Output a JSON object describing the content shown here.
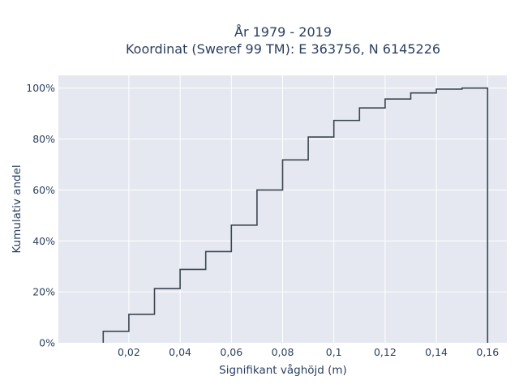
{
  "chart_data": {
    "type": "line",
    "subtype": "cumulative-step",
    "title_line1": "År 1979 - 2019",
    "title_line2": "Koordinat (Sweref 99 TM): E 363756, N 6145226",
    "xlabel": "Signifikant våghöjd (m)",
    "ylabel": "Kumulativ andel",
    "xlim": [
      -0.0075,
      0.1675
    ],
    "ylim": [
      0,
      1.05
    ],
    "x_ticks": [
      0.02,
      0.04,
      0.06,
      0.08,
      0.1,
      0.12,
      0.14,
      0.16
    ],
    "x_tick_labels": [
      "0,02",
      "0,04",
      "0,06",
      "0,08",
      "0,1",
      "0,12",
      "0,14",
      "0,16"
    ],
    "y_ticks": [
      0,
      0.2,
      0.4,
      0.6,
      0.8,
      1.0
    ],
    "y_tick_labels": [
      "0%",
      "20%",
      "40%",
      "60%",
      "80%",
      "100%"
    ],
    "bin_edges": [
      0.01,
      0.02,
      0.03,
      0.04,
      0.05,
      0.06,
      0.07,
      0.08,
      0.09,
      0.1,
      0.11,
      0.12,
      0.13,
      0.14,
      0.15,
      0.16
    ],
    "cumulative": [
      0.045,
      0.112,
      0.213,
      0.288,
      0.358,
      0.462,
      0.6,
      0.718,
      0.808,
      0.873,
      0.922,
      0.957,
      0.981,
      0.996,
      1.0
    ],
    "grid": true,
    "line_color": "#3d4650",
    "plot_bg": "#e5e8f0",
    "grid_color": "#ffffff"
  }
}
